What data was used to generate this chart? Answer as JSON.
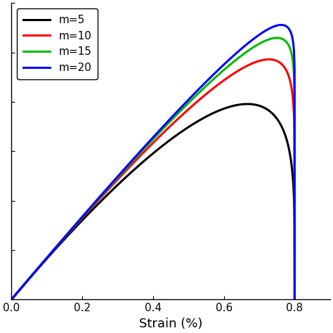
{
  "curves": [
    {
      "m": 5,
      "label": "m=5",
      "color": "#000000"
    },
    {
      "m": 10,
      "label": "m=10",
      "color": "#ff0000"
    },
    {
      "m": 15,
      "label": "m=15",
      "color": "#00bb00"
    },
    {
      "m": 20,
      "label": "m=20",
      "color": "#0000ff"
    }
  ],
  "xlabel": "Strain (%)",
  "xlim": [
    0.0,
    0.9
  ],
  "ylim": [
    0.0,
    1.08
  ],
  "xticks": [
    0.0,
    0.2,
    0.4,
    0.6,
    0.8
  ],
  "epsilon_u": 0.8,
  "linewidth": 2.2,
  "legend_loc": "upper left",
  "legend_fontsize": 11,
  "xlabel_fontsize": 13,
  "tick_fontsize": 11,
  "background_color": "#ffffff",
  "figsize": [
    4.74,
    4.74
  ],
  "dpi": 100,
  "ytick_count": 6,
  "spine_linewidth": 1.0
}
